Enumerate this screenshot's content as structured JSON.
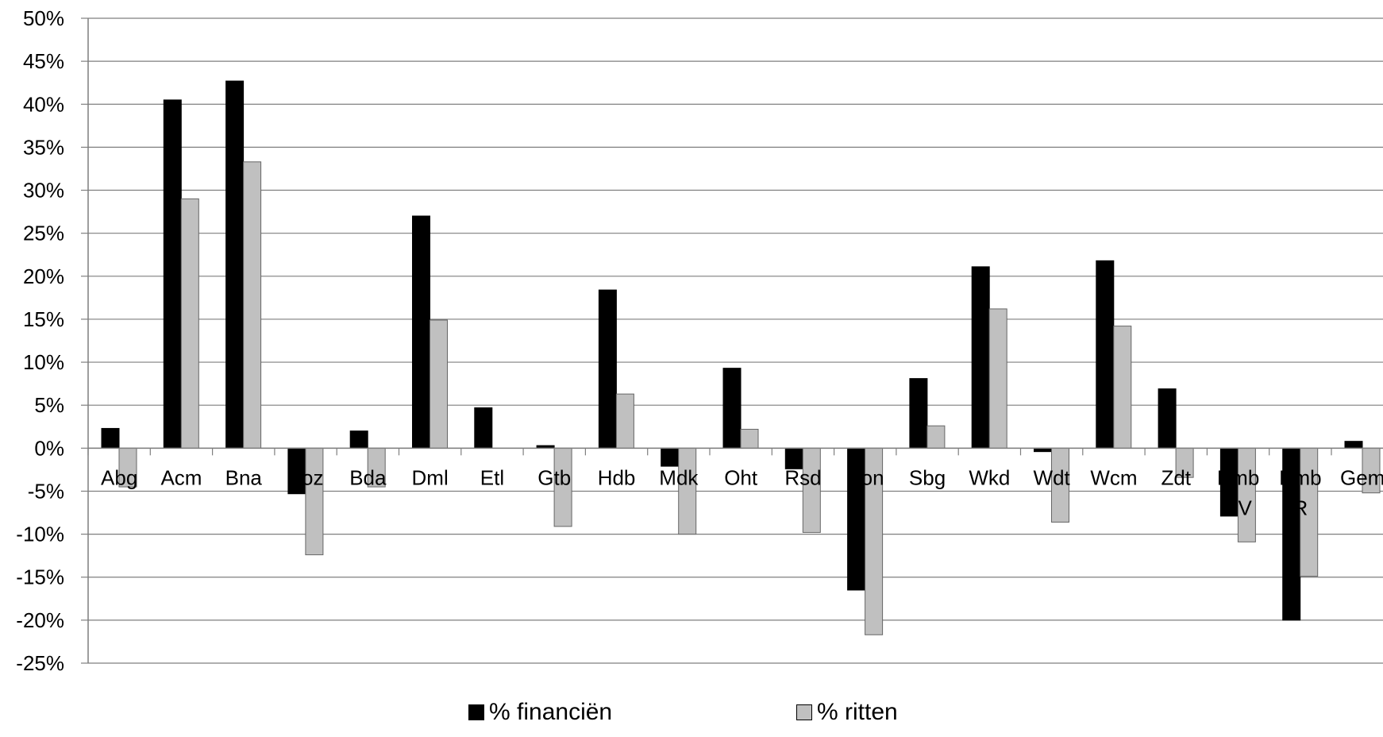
{
  "chart_data": {
    "type": "bar",
    "categories": [
      "Abg",
      "Acm",
      "Bna",
      "Boz",
      "Bda",
      "Dml",
      "Etl",
      "Gtb",
      "Hdb",
      "Mdk",
      "Oht",
      "Rsd",
      "Ron",
      "Sbg",
      "Wkd",
      "Wdt",
      "Wcm",
      "Zdt",
      "Emb\nSV",
      "Emb\nR",
      "Gem"
    ],
    "series": [
      {
        "name": "% financiën",
        "color": "#000000",
        "values": [
          2.3,
          40.5,
          42.7,
          -5.3,
          2.0,
          27.0,
          4.7,
          0.3,
          18.4,
          -2.1,
          9.3,
          -2.4,
          -16.5,
          8.1,
          21.1,
          -0.4,
          21.8,
          6.9,
          -7.9,
          -20.0,
          0.8
        ]
      },
      {
        "name": "% ritten",
        "color": "#c0c0c0",
        "values": [
          -4.5,
          29.0,
          33.3,
          -12.4,
          -4.5,
          14.9,
          0,
          -9.1,
          6.3,
          -10.0,
          2.2,
          -9.8,
          -21.7,
          2.6,
          16.2,
          -8.6,
          14.2,
          -3.4,
          -10.9,
          -14.9,
          -5.2
        ]
      }
    ],
    "ylim": [
      -25,
      50
    ],
    "yticks": [
      "50%",
      "45%",
      "40%",
      "35%",
      "30%",
      "25%",
      "20%",
      "15%",
      "10%",
      "5%",
      "0%",
      "-5%",
      "-10%",
      "-15%",
      "-20%",
      "-25%"
    ],
    "grid": true,
    "legend_position": "bottom"
  }
}
